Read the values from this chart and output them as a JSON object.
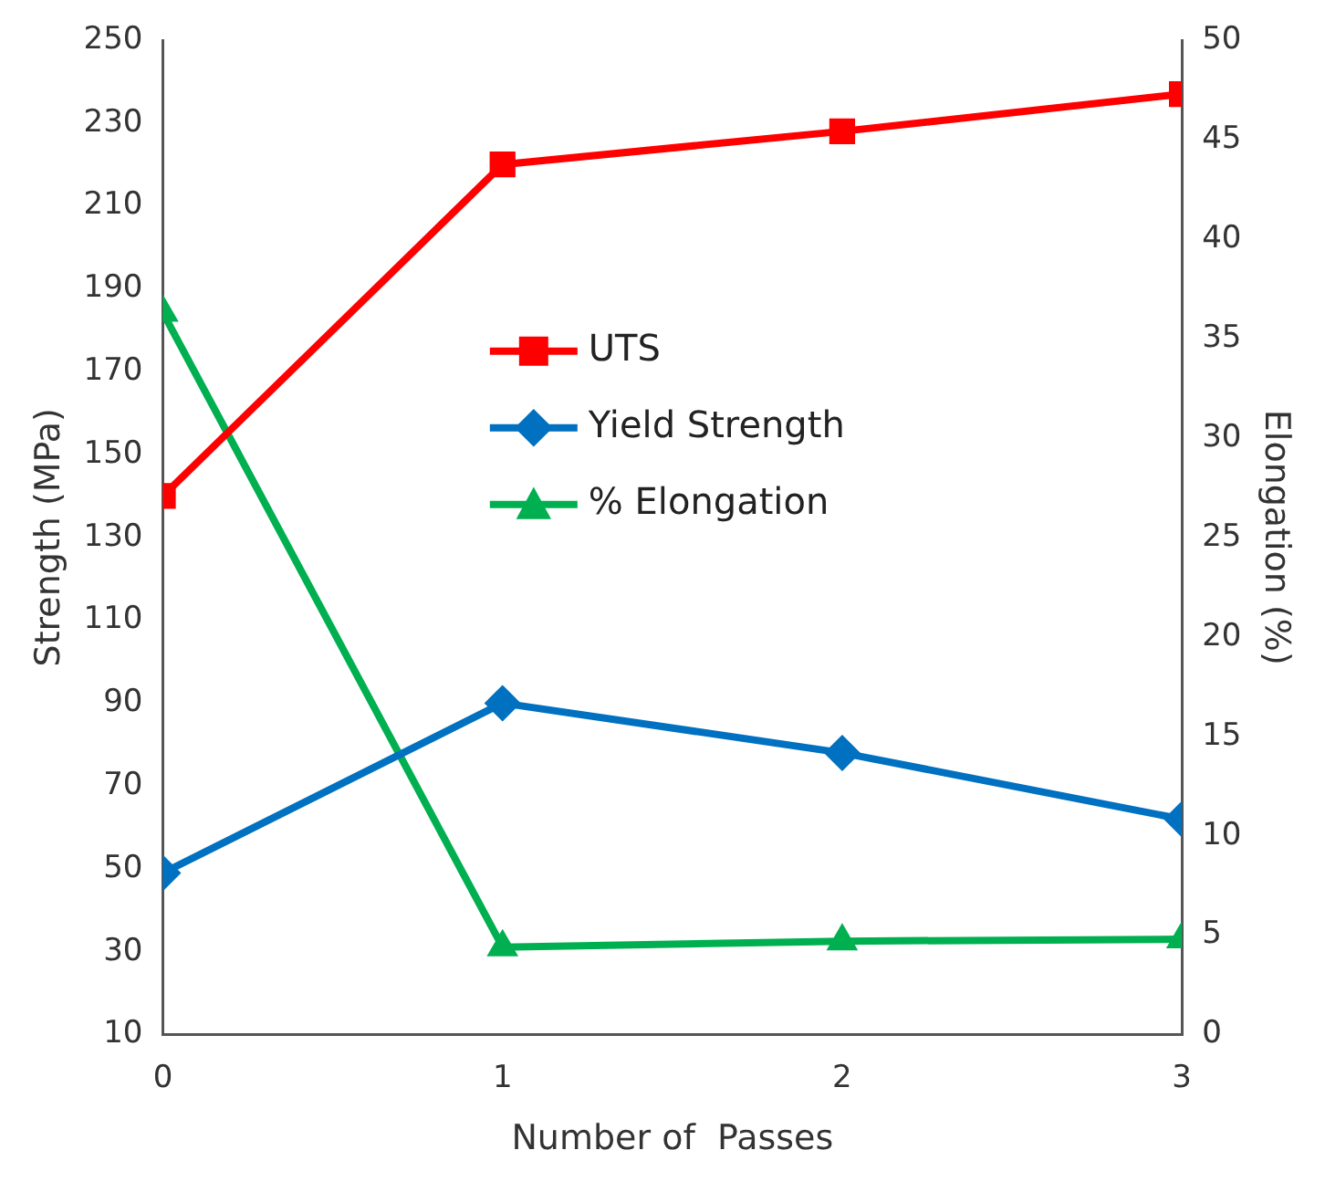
{
  "chart_data": {
    "type": "line",
    "xlabel": "Number of  Passes",
    "ylabel": "Strength (MPa)",
    "y2label": "Elongation (%)",
    "x": [
      0,
      1,
      2,
      3
    ],
    "xlim": [
      0,
      3
    ],
    "xticks": [
      0,
      1,
      2,
      3
    ],
    "ylim": [
      10,
      250
    ],
    "yticks": [
      10,
      30,
      50,
      70,
      90,
      110,
      130,
      150,
      170,
      190,
      210,
      230,
      250
    ],
    "y2lim": [
      0,
      50
    ],
    "y2ticks": [
      0,
      5,
      10,
      15,
      20,
      25,
      30,
      35,
      40,
      45,
      50
    ],
    "grid": false,
    "legend": "center",
    "line_style": "solid",
    "series": [
      {
        "name": "UTS",
        "color": "#ff0000",
        "marker": "square",
        "values": [
          140,
          220,
          228,
          237
        ]
      },
      {
        "name": "Yield Strength",
        "color": "#0070c0",
        "marker": "diamond",
        "values": [
          49,
          90,
          78,
          62
        ]
      },
      {
        "name": "% Elongation",
        "color": "#00b050",
        "marker": "triangle",
        "axis": "y2",
        "values": [
          36.3,
          4.4,
          4.7,
          4.8
        ]
      }
    ]
  }
}
